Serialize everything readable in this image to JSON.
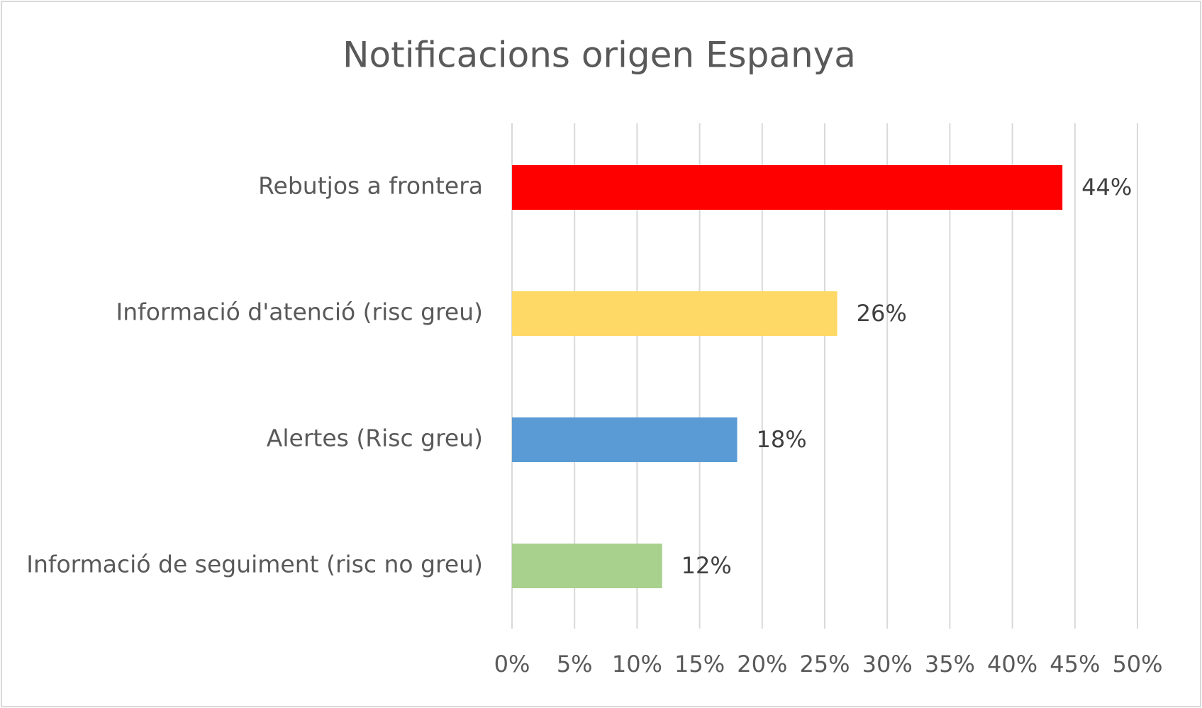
{
  "chart_data": {
    "type": "bar",
    "orientation": "horizontal",
    "title": "Notificacions origen Espanya",
    "categories": [
      "Rebutjos a frontera",
      "Informació d'atenció (risc greu)",
      "Alertes (Risc greu)",
      "Informació de seguiment (risc no greu)"
    ],
    "values": [
      44,
      26,
      18,
      12
    ],
    "value_labels": [
      "44%",
      "26%",
      "18%",
      "12%"
    ],
    "colors": [
      "#ff0000",
      "#ffd966",
      "#5b9bd5",
      "#a9d18e"
    ],
    "xlim": [
      0,
      50
    ],
    "xticks": [
      {
        "value": 0,
        "label": "0%"
      },
      {
        "value": 5,
        "label": "5%"
      },
      {
        "value": 10,
        "label": "10%"
      },
      {
        "value": 15,
        "label": "15%"
      },
      {
        "value": 20,
        "label": "20%"
      },
      {
        "value": 25,
        "label": "25%"
      },
      {
        "value": 30,
        "label": "30%"
      },
      {
        "value": 35,
        "label": "35%"
      },
      {
        "value": 40,
        "label": "40%"
      },
      {
        "value": 45,
        "label": "45%"
      },
      {
        "value": 50,
        "label": "50%"
      }
    ],
    "grid": true
  }
}
